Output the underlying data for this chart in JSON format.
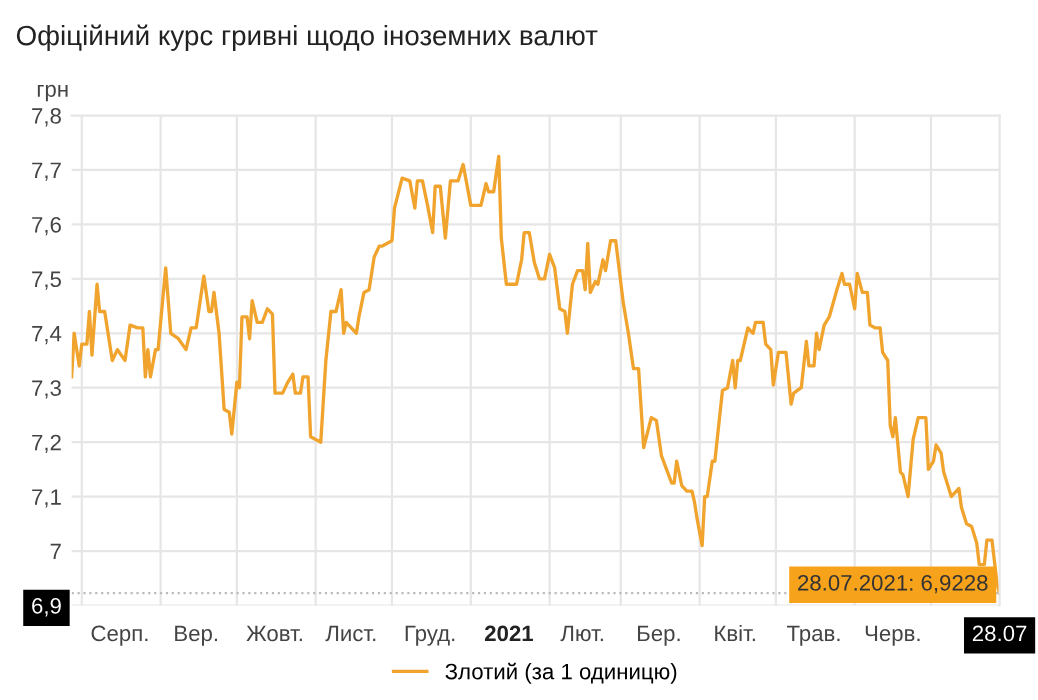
{
  "chart_data": {
    "type": "line",
    "title": "Офіційний курс гривні щодо іноземних валют",
    "ylabel": "грн",
    "x": [
      "2020-07-28",
      "2020-07-29",
      "2020-07-31",
      "2020-08-01",
      "2020-08-03",
      "2020-08-04",
      "2020-08-05",
      "2020-08-07",
      "2020-08-08",
      "2020-08-10",
      "2020-08-12",
      "2020-08-13",
      "2020-08-15",
      "2020-08-18",
      "2020-08-20",
      "2020-08-23",
      "2020-08-25",
      "2020-08-26",
      "2020-08-27",
      "2020-08-28",
      "2020-08-30",
      "2020-08-31",
      "2020-09-03",
      "2020-09-05",
      "2020-09-08",
      "2020-09-11",
      "2020-09-13",
      "2020-09-15",
      "2020-09-18",
      "2020-09-20",
      "2020-09-21",
      "2020-09-22",
      "2020-09-24",
      "2020-09-26",
      "2020-09-28",
      "2020-09-29",
      "2020-10-01",
      "2020-10-02",
      "2020-10-03",
      "2020-10-05",
      "2020-10-06",
      "2020-10-07",
      "2020-10-09",
      "2020-10-11",
      "2020-10-13",
      "2020-10-15",
      "2020-10-16",
      "2020-10-19",
      "2020-10-21",
      "2020-10-23",
      "2020-10-24",
      "2020-10-26",
      "2020-10-27",
      "2020-10-29",
      "2020-10-30",
      "2020-11-03",
      "2020-11-05",
      "2020-11-07",
      "2020-11-09",
      "2020-11-11",
      "2020-11-12",
      "2020-11-13",
      "2020-11-15",
      "2020-11-17",
      "2020-11-18",
      "2020-11-20",
      "2020-11-22",
      "2020-11-24",
      "2020-11-26",
      "2020-11-27",
      "2020-12-01",
      "2020-12-02",
      "2020-12-05",
      "2020-12-08",
      "2020-12-10",
      "2020-12-11",
      "2020-12-13",
      "2020-12-15",
      "2020-12-17",
      "2020-12-18",
      "2020-12-20",
      "2020-12-22",
      "2020-12-24",
      "2020-12-27",
      "2020-12-29",
      "2021-01-01",
      "2021-01-05",
      "2021-01-07",
      "2021-01-08",
      "2021-01-10",
      "2021-01-12",
      "2021-01-13",
      "2021-01-15",
      "2021-01-16",
      "2021-01-19",
      "2021-01-21",
      "2021-01-22",
      "2021-01-24",
      "2021-01-26",
      "2021-01-28",
      "2021-01-30",
      "2021-02-01",
      "2021-02-03",
      "2021-02-05",
      "2021-02-07",
      "2021-02-08",
      "2021-02-10",
      "2021-02-12",
      "2021-02-14",
      "2021-02-15",
      "2021-02-16",
      "2021-02-17",
      "2021-02-19",
      "2021-02-20",
      "2021-02-22",
      "2021-02-23",
      "2021-02-25",
      "2021-02-27",
      "2021-03-02",
      "2021-03-04",
      "2021-03-06",
      "2021-03-08",
      "2021-03-10",
      "2021-03-13",
      "2021-03-15",
      "2021-03-17",
      "2021-03-19",
      "2021-03-21",
      "2021-03-22",
      "2021-03-23",
      "2021-03-25",
      "2021-03-27",
      "2021-03-29",
      "2021-03-30",
      "2021-03-31",
      "2021-04-02",
      "2021-04-03",
      "2021-04-04",
      "2021-04-06",
      "2021-04-07",
      "2021-04-10",
      "2021-04-12",
      "2021-04-14",
      "2021-04-15",
      "2021-04-16",
      "2021-04-17",
      "2021-04-20",
      "2021-04-22",
      "2021-04-23",
      "2021-04-26",
      "2021-04-27",
      "2021-04-29",
      "2021-04-30",
      "2021-05-02",
      "2021-05-05",
      "2021-05-07",
      "2021-05-08",
      "2021-05-11",
      "2021-05-13",
      "2021-05-14",
      "2021-05-16",
      "2021-05-17",
      "2021-05-18",
      "2021-05-20",
      "2021-05-22",
      "2021-05-25",
      "2021-05-27",
      "2021-05-28",
      "2021-05-30",
      "2021-06-01",
      "2021-06-02",
      "2021-06-04",
      "2021-06-06",
      "2021-06-07",
      "2021-06-09",
      "2021-06-11",
      "2021-06-12",
      "2021-06-14",
      "2021-06-15",
      "2021-06-16",
      "2021-06-17",
      "2021-06-19",
      "2021-06-20",
      "2021-06-22",
      "2021-06-24",
      "2021-06-26",
      "2021-06-29",
      "2021-06-30",
      "2021-07-02",
      "2021-07-03",
      "2021-07-05",
      "2021-07-06",
      "2021-07-09",
      "2021-07-12",
      "2021-07-13",
      "2021-07-15",
      "2021-07-17",
      "2021-07-19",
      "2021-07-20",
      "2021-07-22",
      "2021-07-23",
      "2021-07-25",
      "2021-07-27",
      "2021-07-28"
    ],
    "series": [
      {
        "name": "Злотий (за 1 одиницю)",
        "color": "#f0a42e",
        "values": [
          7.32,
          7.4,
          7.34,
          7.38,
          7.38,
          7.44,
          7.36,
          7.49,
          7.44,
          7.44,
          7.38,
          7.35,
          7.37,
          7.35,
          7.415,
          7.41,
          7.41,
          7.32,
          7.37,
          7.32,
          7.37,
          7.37,
          7.52,
          7.4,
          7.39,
          7.37,
          7.41,
          7.41,
          7.505,
          7.44,
          7.44,
          7.475,
          7.4,
          7.26,
          7.255,
          7.215,
          7.31,
          7.3,
          7.43,
          7.43,
          7.39,
          7.46,
          7.42,
          7.42,
          7.445,
          7.435,
          7.29,
          7.29,
          7.31,
          7.325,
          7.29,
          7.29,
          7.32,
          7.32,
          7.21,
          7.2,
          7.35,
          7.44,
          7.44,
          7.48,
          7.4,
          7.42,
          7.41,
          7.4,
          7.43,
          7.475,
          7.48,
          7.54,
          7.56,
          7.56,
          7.57,
          7.63,
          7.685,
          7.68,
          7.63,
          7.68,
          7.68,
          7.635,
          7.585,
          7.67,
          7.67,
          7.575,
          7.68,
          7.68,
          7.71,
          7.635,
          7.635,
          7.675,
          7.66,
          7.66,
          7.725,
          7.575,
          7.49,
          7.49,
          7.49,
          7.535,
          7.585,
          7.585,
          7.53,
          7.5,
          7.5,
          7.545,
          7.52,
          7.445,
          7.44,
          7.4,
          7.49,
          7.515,
          7.515,
          7.48,
          7.565,
          7.475,
          7.495,
          7.49,
          7.535,
          7.515,
          7.57,
          7.57,
          7.455,
          7.4,
          7.335,
          7.335,
          7.19,
          7.245,
          7.24,
          7.175,
          7.15,
          7.125,
          7.125,
          7.165,
          7.12,
          7.11,
          7.11,
          7.09,
          7.06,
          7.01,
          7.1,
          7.1,
          7.165,
          7.165,
          7.295,
          7.3,
          7.35,
          7.3,
          7.35,
          7.35,
          7.41,
          7.4,
          7.42,
          7.42,
          7.38,
          7.37,
          7.305,
          7.365,
          7.365,
          7.27,
          7.29,
          7.3,
          7.385,
          7.34,
          7.34,
          7.4,
          7.37,
          7.415,
          7.43,
          7.48,
          7.51,
          7.49,
          7.49,
          7.445,
          7.51,
          7.475,
          7.475,
          7.415,
          7.41,
          7.41,
          7.365,
          7.35,
          7.23,
          7.21,
          7.245,
          7.145,
          7.14,
          7.1,
          7.205,
          7.245,
          7.245,
          7.15,
          7.165,
          7.195,
          7.18,
          7.145,
          7.1,
          7.115,
          7.08,
          7.05,
          7.045,
          7.015,
          6.975,
          6.975,
          7.02,
          7.02,
          6.94,
          6.9228
        ]
      }
    ],
    "xlim": [
      "2020-07-28",
      "2021-07-28"
    ],
    "xticks": [
      {
        "value": "2020-08-01",
        "label": null
      },
      {
        "value": "2020-08-16",
        "label": "Серп."
      },
      {
        "value": "2020-09-01",
        "label": null
      },
      {
        "value": "2020-09-15",
        "label": "Вер."
      },
      {
        "value": "2020-10-01",
        "label": null
      },
      {
        "value": "2020-10-16",
        "label": "Жовт."
      },
      {
        "value": "2020-11-01",
        "label": null
      },
      {
        "value": "2020-11-15",
        "label": "Лист."
      },
      {
        "value": "2020-12-01",
        "label": null
      },
      {
        "value": "2020-12-16",
        "label": "Груд."
      },
      {
        "value": "2021-01-01",
        "label": null
      },
      {
        "value": "2021-01-16",
        "label": "2021"
      },
      {
        "value": "2021-02-01",
        "label": null
      },
      {
        "value": "2021-02-14",
        "label": "Лют."
      },
      {
        "value": "2021-03-01",
        "label": null
      },
      {
        "value": "2021-03-16",
        "label": "Бер."
      },
      {
        "value": "2021-04-01",
        "label": null
      },
      {
        "value": "2021-04-15",
        "label": "Квіт."
      },
      {
        "value": "2021-05-01",
        "label": null
      },
      {
        "value": "2021-05-16",
        "label": "Трав."
      },
      {
        "value": "2021-06-01",
        "label": null
      },
      {
        "value": "2021-06-16",
        "label": "Черв."
      },
      {
        "value": "2021-07-01",
        "label": null
      },
      {
        "value": "2021-07-28",
        "label": "28.07"
      }
    ],
    "ylim": [
      6.9,
      7.8
    ],
    "yticks": [
      {
        "value": 6.9,
        "label": "6,9"
      },
      7,
      {
        "value": 7.1,
        "label": "7,1"
      },
      {
        "value": 7.2,
        "label": "7,2"
      },
      {
        "value": 7.3,
        "label": "7,3"
      },
      {
        "value": 7.4,
        "label": "7,4"
      },
      {
        "value": 7.5,
        "label": "7,5"
      },
      {
        "value": 7.6,
        "label": "7,6"
      },
      {
        "value": 7.7,
        "label": "7,7"
      },
      {
        "value": 7.8,
        "label": "7,8"
      }
    ],
    "ref_lines": [
      {
        "axis": "y",
        "value": 6.9228,
        "label": null,
        "color": "#bbbbbb",
        "line_style": "dotted"
      }
    ],
    "annotations": [
      {
        "text": "28.07.2021: 6,9228",
        "x": "2021-07-28",
        "y": 6.9228
      }
    ],
    "grid": true,
    "legend": "bottom",
    "marker": "none",
    "line_style": "solid"
  }
}
